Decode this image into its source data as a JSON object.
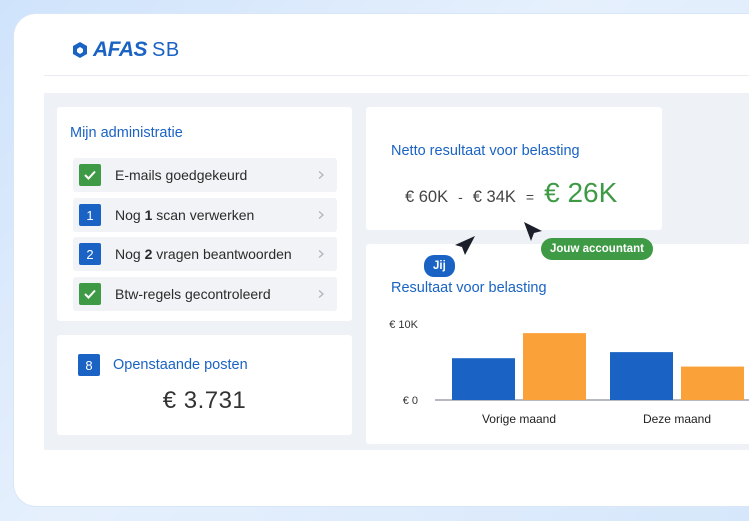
{
  "brand": {
    "name": "AFAS",
    "suffix": "SB",
    "color": "#1a63c4"
  },
  "admin": {
    "title": "Mijn administratie",
    "tasks": [
      {
        "badge": "✓",
        "badge_type": "check",
        "text_before": "E-mails goedgekeurd",
        "bold": "",
        "text_after": ""
      },
      {
        "badge": "1",
        "badge_type": "number",
        "text_before": "Nog ",
        "bold": "1",
        "text_after": " scan verwerken"
      },
      {
        "badge": "2",
        "badge_type": "number",
        "text_before": "Nog ",
        "bold": "2",
        "text_after": " vragen beantwoorden"
      },
      {
        "badge": "✓",
        "badge_type": "check",
        "text_before": "Btw-regels gecontroleerd",
        "bold": "",
        "text_after": ""
      }
    ]
  },
  "open_items": {
    "count": "8",
    "title": "Openstaande posten",
    "amount": "€ 3.731"
  },
  "netto": {
    "title": "Netto resultaat voor belasting",
    "income": "€ 60K",
    "minus": "-",
    "costs": "€ 34K",
    "equals": "=",
    "result": "€ 26K"
  },
  "cursors": {
    "you": "Jij",
    "accountant": "Jouw accountant"
  },
  "chart_data": {
    "type": "bar",
    "title": "Resultaat voor belasting",
    "categories": [
      "Vorige maand",
      "Deze maand"
    ],
    "series": [
      {
        "color": "#1a63c4",
        "values": [
          5.5,
          6.3
        ]
      },
      {
        "color": "#fba13a",
        "values": [
          8.8,
          4.4
        ]
      }
    ],
    "ytick_labels": [
      "€ 10K",
      "€ 0"
    ],
    "yticks": [
      10,
      0
    ],
    "ylim": [
      0,
      10
    ]
  },
  "colors": {
    "accent": "#1a63c4",
    "success": "#3f9a45",
    "orange": "#fba13a"
  }
}
